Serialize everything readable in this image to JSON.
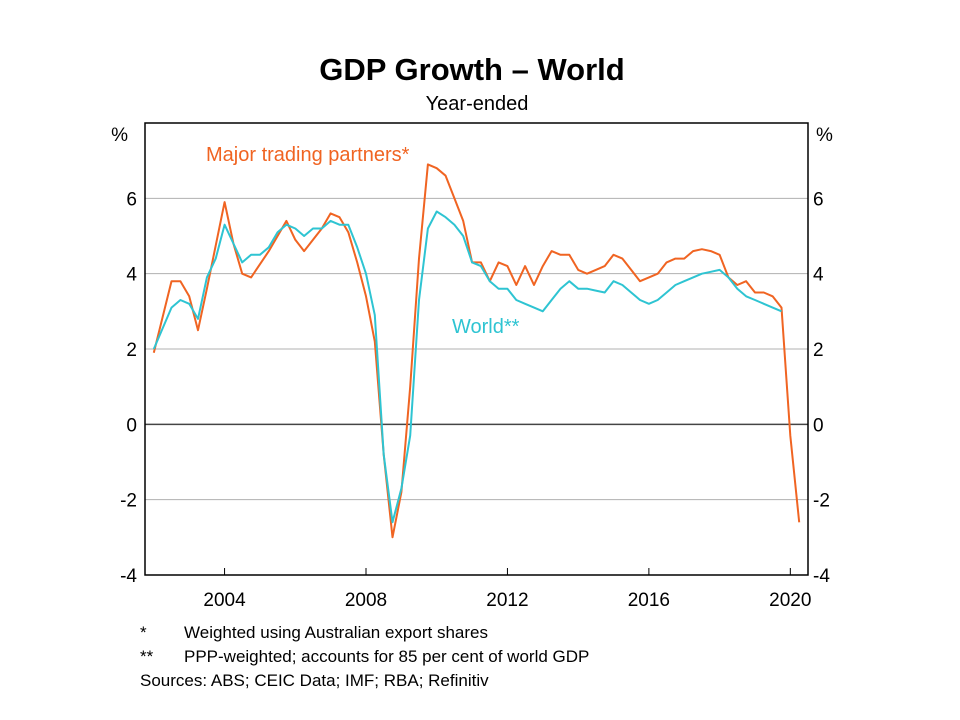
{
  "chart_data": {
    "type": "line",
    "title": "GDP Growth – World",
    "subtitle": "Year-ended",
    "ylabel_left": "%",
    "ylabel_right": "%",
    "ylim": [
      -4,
      8
    ],
    "xlim": [
      2001.75,
      2020.5
    ],
    "yticks": [
      -4,
      -2,
      0,
      2,
      4,
      6
    ],
    "ytick_labels": [
      "-4",
      "-2",
      "0",
      "2",
      "4",
      "6"
    ],
    "xticks": [
      2004,
      2008,
      2012,
      2016,
      2020
    ],
    "xtick_labels": [
      "2004",
      "2008",
      "2012",
      "2016",
      "2020"
    ],
    "grid": true,
    "colors": {
      "major": "#f06422",
      "world": "#2ec4d2",
      "grid": "#b0b0b0"
    },
    "series": [
      {
        "name": "Major trading partners*",
        "color": "#f06422",
        "x": [
          2002.0,
          2002.5,
          2002.75,
          2003.0,
          2003.25,
          2003.5,
          2004.0,
          2004.25,
          2004.5,
          2004.75,
          2005.25,
          2005.75,
          2006.0,
          2006.25,
          2006.75,
          2007.0,
          2007.25,
          2007.5,
          2007.75,
          2008.0,
          2008.25,
          2008.5,
          2008.75,
          2009.0,
          2009.25,
          2009.5,
          2009.75,
          2010.0,
          2010.25,
          2010.5,
          2010.75,
          2011.0,
          2011.25,
          2011.5,
          2011.75,
          2012.0,
          2012.25,
          2012.5,
          2012.75,
          2013.0,
          2013.25,
          2013.5,
          2013.75,
          2014.0,
          2014.25,
          2014.5,
          2014.75,
          2015.0,
          2015.25,
          2015.5,
          2015.75,
          2016.0,
          2016.25,
          2016.5,
          2016.75,
          2017.0,
          2017.25,
          2017.5,
          2017.75,
          2018.0,
          2018.25,
          2018.5,
          2018.75,
          2019.0,
          2019.25,
          2019.5,
          2019.75,
          2020.0,
          2020.25
        ],
        "values": [
          1.9,
          3.8,
          3.8,
          3.4,
          2.5,
          3.6,
          5.9,
          4.8,
          4.0,
          3.9,
          4.6,
          5.4,
          4.9,
          4.6,
          5.2,
          5.6,
          5.5,
          5.1,
          4.3,
          3.4,
          2.2,
          -0.8,
          -3.0,
          -1.8,
          1.0,
          4.4,
          6.9,
          6.8,
          6.6,
          6.0,
          5.4,
          4.3,
          4.3,
          3.8,
          4.3,
          4.2,
          3.7,
          4.2,
          3.7,
          4.2,
          4.6,
          4.5,
          4.5,
          4.1,
          4.0,
          4.1,
          4.2,
          4.5,
          4.4,
          4.1,
          3.8,
          3.9,
          4.0,
          4.3,
          4.4,
          4.4,
          4.6,
          4.65,
          4.6,
          4.5,
          3.9,
          3.7,
          3.8,
          3.5,
          3.5,
          3.4,
          3.1,
          -0.3,
          -2.6
        ]
      },
      {
        "name": "World**",
        "color": "#2ec4d2",
        "x": [
          2002.0,
          2002.5,
          2002.75,
          2003.0,
          2003.25,
          2003.5,
          2003.75,
          2004.0,
          2004.25,
          2004.5,
          2004.75,
          2005.0,
          2005.25,
          2005.5,
          2005.75,
          2006.0,
          2006.25,
          2006.5,
          2006.75,
          2007.0,
          2007.25,
          2007.5,
          2007.75,
          2008.0,
          2008.25,
          2008.5,
          2008.75,
          2009.0,
          2009.25,
          2009.5,
          2009.75,
          2010.0,
          2010.25,
          2010.5,
          2010.75,
          2011.0,
          2011.25,
          2011.5,
          2011.75,
          2012.0,
          2012.25,
          2012.5,
          2012.75,
          2013.0,
          2013.25,
          2013.5,
          2013.75,
          2014.0,
          2014.25,
          2014.5,
          2014.75,
          2015.0,
          2015.25,
          2015.5,
          2015.75,
          2016.0,
          2016.25,
          2016.5,
          2016.75,
          2017.0,
          2017.25,
          2017.5,
          2017.75,
          2018.0,
          2018.25,
          2018.5,
          2018.75,
          2019.0,
          2019.25,
          2019.5,
          2019.75
        ],
        "values": [
          2.0,
          3.1,
          3.3,
          3.2,
          2.8,
          3.9,
          4.4,
          5.3,
          4.8,
          4.3,
          4.5,
          4.5,
          4.7,
          5.1,
          5.3,
          5.2,
          5.0,
          5.2,
          5.2,
          5.4,
          5.3,
          5.3,
          4.7,
          4.0,
          2.9,
          -0.8,
          -2.6,
          -1.7,
          -0.3,
          3.3,
          5.2,
          5.65,
          5.5,
          5.3,
          5.0,
          4.3,
          4.2,
          3.8,
          3.6,
          3.6,
          3.3,
          3.2,
          3.1,
          3.0,
          3.3,
          3.6,
          3.8,
          3.6,
          3.6,
          3.55,
          3.5,
          3.8,
          3.7,
          3.5,
          3.3,
          3.2,
          3.3,
          3.5,
          3.7,
          3.8,
          3.9,
          4.0,
          4.05,
          4.1,
          3.9,
          3.6,
          3.4,
          3.3,
          3.2,
          3.1,
          3.0
        ]
      }
    ]
  },
  "notes": [
    {
      "mark": "*",
      "text": "Weighted using Australian export shares"
    },
    {
      "mark": "**",
      "text": "PPP-weighted; accounts for 85 per cent of world GDP"
    }
  ],
  "sources": "Sources: ABS; CEIC Data; IMF; RBA; Refinitiv"
}
